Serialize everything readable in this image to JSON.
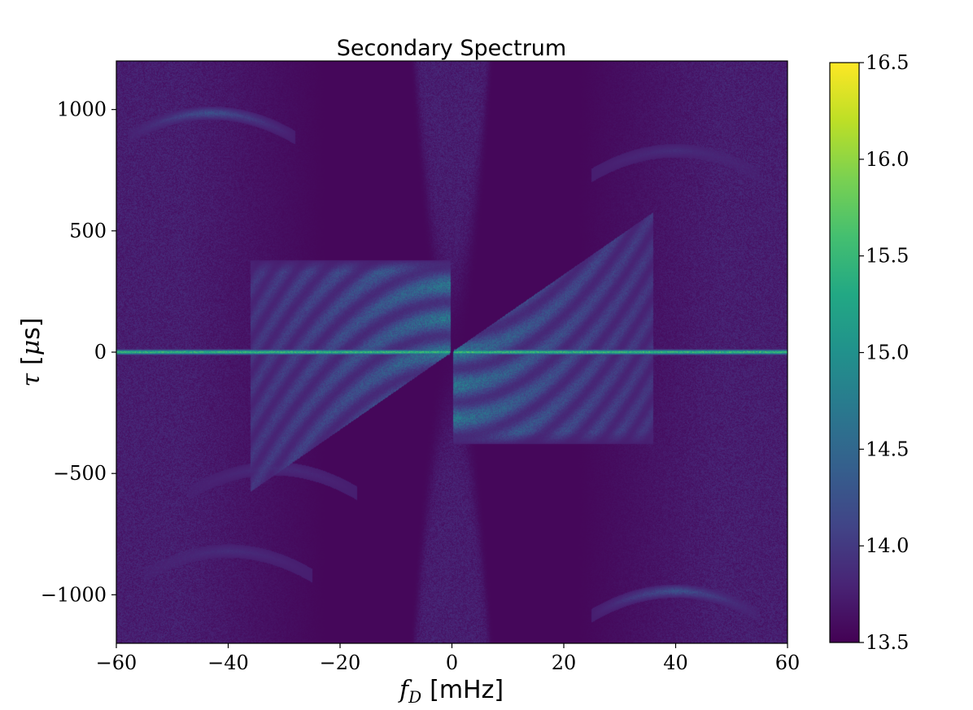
{
  "chart_data": {
    "type": "heatmap",
    "title": "Secondary Spectrum",
    "xlabel": {
      "symbol": "f",
      "subscript": "D",
      "unit": "[mHz]"
    },
    "ylabel": {
      "symbol": "τ",
      "unit_prefix": "[",
      "unit_mu": "μ",
      "unit_rest": "s]"
    },
    "xlim": [
      -60,
      60
    ],
    "ylim": [
      -1200,
      1200
    ],
    "xticks": [
      -60,
      -40,
      -20,
      0,
      20,
      40,
      60
    ],
    "xtick_labels": [
      "−60",
      "−40",
      "−20",
      "0",
      "20",
      "40",
      "60"
    ],
    "yticks": [
      -1000,
      -500,
      0,
      500,
      1000
    ],
    "ytick_labels": [
      "−1000",
      "−500",
      "0",
      "500",
      "1000"
    ],
    "colormap": "viridis",
    "color_range": [
      13.5,
      16.5
    ],
    "colorbar_ticks": [
      13.5,
      14.0,
      14.5,
      15.0,
      15.5,
      16.0,
      16.5
    ],
    "colorbar_tick_labels": [
      "13.5",
      "14.0",
      "14.5",
      "15.0",
      "15.5",
      "16.0",
      "16.5"
    ],
    "background_level": 13.55,
    "noise_level": 13.75,
    "features": [
      {
        "kind": "horizontal-line",
        "tau": 0,
        "level": 15.7
      },
      {
        "kind": "parabolic-wedge",
        "level": 15.0
      },
      {
        "kind": "inverted-arc",
        "apex_fD": -43,
        "apex_tau": 985,
        "level": 14.3
      },
      {
        "kind": "inverted-arc",
        "apex_fD": 40,
        "apex_tau": -985,
        "level": 14.3
      },
      {
        "kind": "inverted-arc",
        "apex_fD": 40,
        "apex_tau": 830,
        "level": 13.9
      },
      {
        "kind": "inverted-arc",
        "apex_fD": -32,
        "apex_tau": -480,
        "level": 13.9
      },
      {
        "kind": "inverted-arc",
        "apex_fD": -40,
        "apex_tau": -820,
        "level": 13.9
      }
    ]
  }
}
